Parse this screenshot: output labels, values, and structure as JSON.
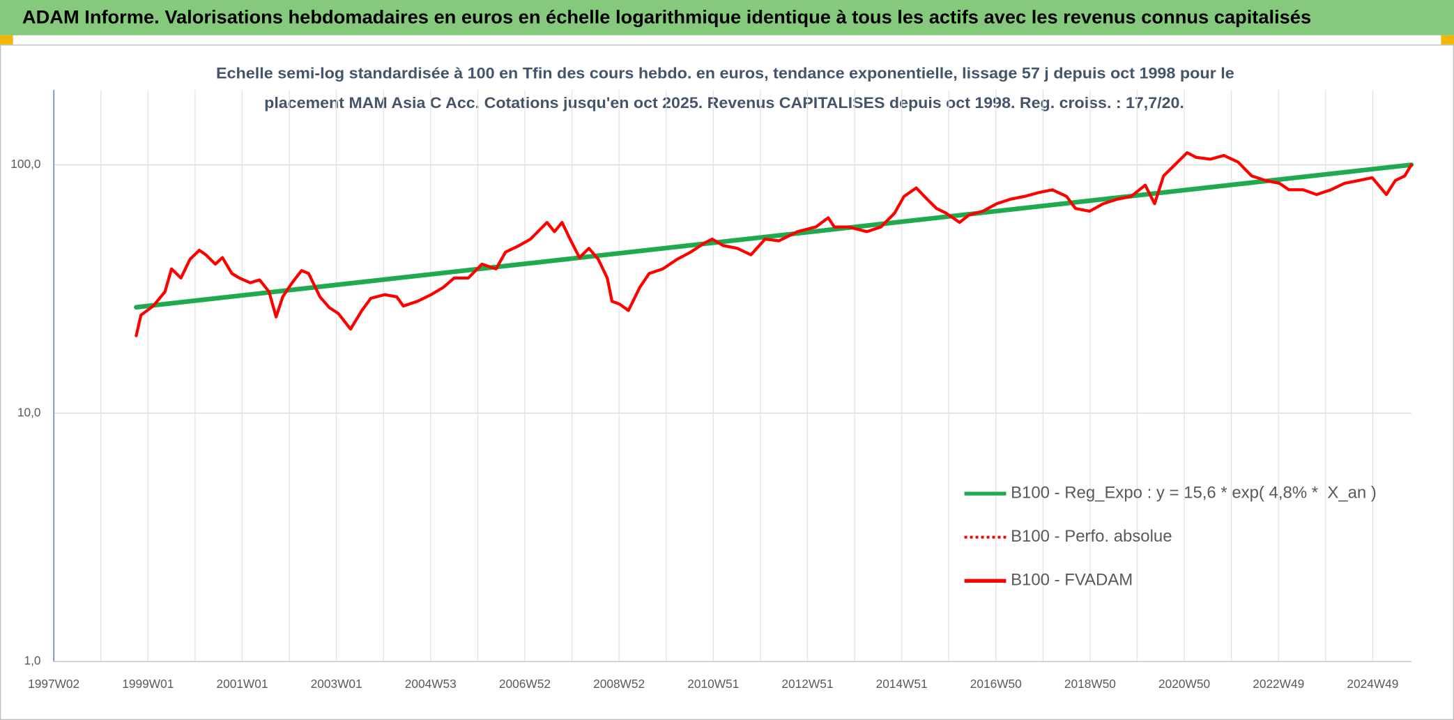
{
  "header": {
    "title": "ADAM Informe. Valorisations hebdomadaires en euros en échelle logarithmique identique à tous les actifs avec les revenus connus capitalisés"
  },
  "chart_data": {
    "type": "line",
    "subtitle": [
      "Echelle semi-log standardisée à 100 en Tfin des cours hebdo. en euros, tendance exponentielle, lissage 57 j depuis oct 1998 pour le",
      "placement MAM Asia C Acc. Cotations jusqu'en oct 2025. Revenus CAPITALISES depuis oct 1998. Reg. croiss. : 17,7/20."
    ],
    "xlim": [
      1997.0,
      2025.82
    ],
    "xticks": [
      {
        "value": 1997.0,
        "label": "1997W02"
      },
      {
        "value": 1999.0,
        "label": "1999W01"
      },
      {
        "value": 2001.0,
        "label": "2001W01"
      },
      {
        "value": 2003.0,
        "label": "2003W01"
      },
      {
        "value": 2005.0,
        "label": "2004W53"
      },
      {
        "value": 2007.0,
        "label": "2006W52"
      },
      {
        "value": 2009.0,
        "label": "2008W52"
      },
      {
        "value": 2011.0,
        "label": "2010W51"
      },
      {
        "value": 2013.0,
        "label": "2012W51"
      },
      {
        "value": 2015.0,
        "label": "2014W51"
      },
      {
        "value": 2017.0,
        "label": "2016W50"
      },
      {
        "value": 2019.0,
        "label": "2018W50"
      },
      {
        "value": 2021.0,
        "label": "2020W50"
      },
      {
        "value": 2023.0,
        "label": "2022W49"
      },
      {
        "value": 2025.0,
        "label": "2024W49"
      }
    ],
    "ylim": [
      1,
      200
    ],
    "yticks": [
      {
        "value": 1,
        "label": "1,0"
      },
      {
        "value": 10,
        "label": "10,0"
      },
      {
        "value": 100,
        "label": "100,0"
      }
    ],
    "log_y": true,
    "grid": true,
    "legend_position": "lower right",
    "series": [
      {
        "name": "B100 - Reg_Expo : y = 15,6 * exp( 4,8% *  X_an )",
        "color": "#1faa50",
        "line_style": "solid",
        "x": [
          1998.75,
          2025.82
        ],
        "values": [
          26.7,
          100.0
        ]
      },
      {
        "name": "B100 - Perfo. absolue",
        "color": "#ff0000",
        "line_style": "dotted",
        "x": [],
        "values": []
      },
      {
        "name": "B100 - FVADAM",
        "color": "#ff0000",
        "line_style": "solid",
        "x": [
          1998.75,
          1998.85,
          1999.11,
          1999.36,
          1999.5,
          1999.7,
          1999.89,
          2000.09,
          2000.23,
          2000.43,
          2000.58,
          2000.78,
          2000.94,
          2001.17,
          2001.37,
          2001.57,
          2001.72,
          2001.86,
          2002.06,
          2002.26,
          2002.41,
          2002.65,
          2002.85,
          2003.04,
          2003.3,
          2003.54,
          2003.73,
          2004.03,
          2004.28,
          2004.42,
          2004.72,
          2005.01,
          2005.27,
          2005.5,
          2005.8,
          2006.09,
          2006.39,
          2006.59,
          2006.88,
          2007.12,
          2007.47,
          2007.63,
          2007.79,
          2007.96,
          2008.16,
          2008.36,
          2008.56,
          2008.75,
          2008.85,
          2009.01,
          2009.2,
          2009.44,
          2009.64,
          2009.93,
          2010.23,
          2010.52,
          2010.82,
          2010.98,
          2011.21,
          2011.51,
          2011.8,
          2012.1,
          2012.39,
          2012.79,
          2013.18,
          2013.44,
          2013.57,
          2013.87,
          2014.26,
          2014.56,
          2014.85,
          2015.05,
          2015.31,
          2015.54,
          2015.74,
          2015.94,
          2016.23,
          2016.43,
          2016.72,
          2017.02,
          2017.31,
          2017.61,
          2017.91,
          2018.2,
          2018.5,
          2018.69,
          2018.99,
          2019.28,
          2019.58,
          2019.87,
          2020.17,
          2020.37,
          2020.56,
          2020.76,
          2021.06,
          2021.25,
          2021.55,
          2021.84,
          2022.14,
          2022.43,
          2022.73,
          2023.02,
          2023.22,
          2023.52,
          2023.81,
          2024.11,
          2024.4,
          2024.7,
          2024.99,
          2025.29,
          2025.48,
          2025.68,
          2025.82
        ],
        "values": [
          20.5,
          24.8,
          27.0,
          30.8,
          38.1,
          35.0,
          41.6,
          45.3,
          43.4,
          39.8,
          42.3,
          36.5,
          35.0,
          33.5,
          34.4,
          30.8,
          24.4,
          29.4,
          33.5,
          37.5,
          36.5,
          29.4,
          26.6,
          25.2,
          21.8,
          25.9,
          29.0,
          30.0,
          29.4,
          27.0,
          28.2,
          30.0,
          32.1,
          35.0,
          35.0,
          39.8,
          38.1,
          44.5,
          47.3,
          50.2,
          58.6,
          53.8,
          58.6,
          50.2,
          42.3,
          46.1,
          41.6,
          35.0,
          28.2,
          27.5,
          25.9,
          32.1,
          36.5,
          38.1,
          41.6,
          44.5,
          48.5,
          50.2,
          47.3,
          46.1,
          43.4,
          50.2,
          49.4,
          53.8,
          56.2,
          61.2,
          56.2,
          56.2,
          53.8,
          56.2,
          63.9,
          74.6,
          80.7,
          72.7,
          66.7,
          63.9,
          58.6,
          62.8,
          65.0,
          69.7,
          72.7,
          74.6,
          77.3,
          79.3,
          74.6,
          66.7,
          65.0,
          69.7,
          72.7,
          74.6,
          82.8,
          69.7,
          90.2,
          98.3,
          111.9,
          107.1,
          105.3,
          109.0,
          102.6,
          90.2,
          86.4,
          84.2,
          79.3,
          79.3,
          75.9,
          79.3,
          84.2,
          86.4,
          88.7,
          75.9,
          86.4,
          90.2,
          100.0
        ]
      }
    ]
  }
}
